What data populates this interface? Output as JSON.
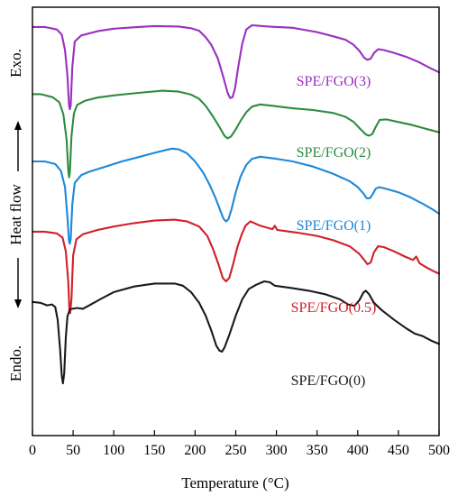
{
  "chart_data": {
    "type": "line",
    "xlabel": "Temperature (°C)",
    "ylabel": "Heat flow",
    "direction_labels": {
      "top": "Exo.",
      "bottom": "Endo."
    },
    "xlim": [
      0,
      500
    ],
    "x_ticks": [
      0,
      50,
      100,
      150,
      200,
      250,
      300,
      350,
      400,
      450,
      500
    ],
    "grid": false,
    "series": [
      {
        "name": "SPE/FGO(3)",
        "color": "#9B2FC0",
        "points": [
          [
            0,
            0.954
          ],
          [
            15,
            0.954
          ],
          [
            30,
            0.948
          ],
          [
            36,
            0.936
          ],
          [
            40,
            0.9
          ],
          [
            43,
            0.84
          ],
          [
            45,
            0.77
          ],
          [
            46,
            0.762
          ],
          [
            47,
            0.77
          ],
          [
            49,
            0.86
          ],
          [
            52,
            0.92
          ],
          [
            60,
            0.934
          ],
          [
            80,
            0.944
          ],
          [
            100,
            0.95
          ],
          [
            130,
            0.954
          ],
          [
            150,
            0.956
          ],
          [
            180,
            0.955
          ],
          [
            195,
            0.951
          ],
          [
            205,
            0.945
          ],
          [
            213,
            0.93
          ],
          [
            220,
            0.912
          ],
          [
            228,
            0.88
          ],
          [
            235,
            0.835
          ],
          [
            240,
            0.8
          ],
          [
            243,
            0.788
          ],
          [
            246,
            0.79
          ],
          [
            249,
            0.81
          ],
          [
            253,
            0.86
          ],
          [
            258,
            0.915
          ],
          [
            263,
            0.948
          ],
          [
            270,
            0.958
          ],
          [
            290,
            0.955
          ],
          [
            320,
            0.952
          ],
          [
            350,
            0.942
          ],
          [
            370,
            0.932
          ],
          [
            385,
            0.924
          ],
          [
            395,
            0.912
          ],
          [
            402,
            0.898
          ],
          [
            408,
            0.882
          ],
          [
            412,
            0.877
          ],
          [
            416,
            0.88
          ],
          [
            420,
            0.893
          ],
          [
            425,
            0.902
          ],
          [
            432,
            0.9
          ],
          [
            445,
            0.893
          ],
          [
            460,
            0.884
          ],
          [
            475,
            0.872
          ],
          [
            490,
            0.857
          ],
          [
            500,
            0.848
          ]
        ]
      },
      {
        "name": "SPE/FGO(2)",
        "color": "#2E8B40",
        "points": [
          [
            0,
            0.797
          ],
          [
            10,
            0.797
          ],
          [
            25,
            0.79
          ],
          [
            33,
            0.778
          ],
          [
            38,
            0.75
          ],
          [
            42,
            0.69
          ],
          [
            44,
            0.62
          ],
          [
            45,
            0.603
          ],
          [
            46,
            0.615
          ],
          [
            48,
            0.7
          ],
          [
            51,
            0.752
          ],
          [
            55,
            0.772
          ],
          [
            65,
            0.782
          ],
          [
            80,
            0.789
          ],
          [
            100,
            0.794
          ],
          [
            130,
            0.8
          ],
          [
            160,
            0.805
          ],
          [
            180,
            0.803
          ],
          [
            195,
            0.796
          ],
          [
            205,
            0.786
          ],
          [
            213,
            0.77
          ],
          [
            222,
            0.745
          ],
          [
            230,
            0.72
          ],
          [
            236,
            0.7
          ],
          [
            240,
            0.694
          ],
          [
            244,
            0.698
          ],
          [
            250,
            0.715
          ],
          [
            257,
            0.738
          ],
          [
            263,
            0.755
          ],
          [
            270,
            0.768
          ],
          [
            280,
            0.773
          ],
          [
            295,
            0.77
          ],
          [
            320,
            0.764
          ],
          [
            345,
            0.76
          ],
          [
            370,
            0.753
          ],
          [
            385,
            0.744
          ],
          [
            395,
            0.732
          ],
          [
            403,
            0.716
          ],
          [
            410,
            0.703
          ],
          [
            414,
            0.7
          ],
          [
            418,
            0.704
          ],
          [
            422,
            0.72
          ],
          [
            427,
            0.737
          ],
          [
            435,
            0.738
          ],
          [
            450,
            0.732
          ],
          [
            465,
            0.726
          ],
          [
            480,
            0.718
          ],
          [
            492,
            0.712
          ],
          [
            500,
            0.708
          ]
        ]
      },
      {
        "name": "SPE/FGO(1)",
        "color": "#1E88D8",
        "points": [
          [
            0,
            0.64
          ],
          [
            15,
            0.64
          ],
          [
            28,
            0.634
          ],
          [
            35,
            0.618
          ],
          [
            40,
            0.58
          ],
          [
            43,
            0.51
          ],
          [
            45,
            0.453
          ],
          [
            46,
            0.448
          ],
          [
            47,
            0.458
          ],
          [
            49,
            0.54
          ],
          [
            52,
            0.59
          ],
          [
            60,
            0.608
          ],
          [
            70,
            0.616
          ],
          [
            90,
            0.628
          ],
          [
            110,
            0.64
          ],
          [
            130,
            0.65
          ],
          [
            150,
            0.66
          ],
          [
            165,
            0.667
          ],
          [
            172,
            0.67
          ],
          [
            180,
            0.668
          ],
          [
            190,
            0.659
          ],
          [
            200,
            0.64
          ],
          [
            210,
            0.614
          ],
          [
            218,
            0.585
          ],
          [
            225,
            0.555
          ],
          [
            231,
            0.525
          ],
          [
            235,
            0.506
          ],
          [
            238,
            0.5
          ],
          [
            241,
            0.505
          ],
          [
            245,
            0.53
          ],
          [
            250,
            0.568
          ],
          [
            256,
            0.605
          ],
          [
            263,
            0.632
          ],
          [
            270,
            0.646
          ],
          [
            280,
            0.651
          ],
          [
            300,
            0.646
          ],
          [
            320,
            0.64
          ],
          [
            345,
            0.628
          ],
          [
            370,
            0.611
          ],
          [
            390,
            0.594
          ],
          [
            400,
            0.58
          ],
          [
            407,
            0.565
          ],
          [
            411,
            0.554
          ],
          [
            415,
            0.554
          ],
          [
            418,
            0.562
          ],
          [
            422,
            0.576
          ],
          [
            426,
            0.58
          ],
          [
            435,
            0.576
          ],
          [
            450,
            0.568
          ],
          [
            465,
            0.556
          ],
          [
            480,
            0.541
          ],
          [
            492,
            0.528
          ],
          [
            500,
            0.518
          ]
        ]
      },
      {
        "name": "SPE/FGO(0.5)",
        "color": "#D0202A",
        "points": [
          [
            0,
            0.476
          ],
          [
            15,
            0.476
          ],
          [
            30,
            0.472
          ],
          [
            37,
            0.462
          ],
          [
            41,
            0.43
          ],
          [
            44,
            0.36
          ],
          [
            45.5,
            0.292
          ],
          [
            46.5,
            0.286
          ],
          [
            48,
            0.32
          ],
          [
            50,
            0.42
          ],
          [
            54,
            0.458
          ],
          [
            62,
            0.47
          ],
          [
            80,
            0.48
          ],
          [
            100,
            0.488
          ],
          [
            125,
            0.496
          ],
          [
            150,
            0.502
          ],
          [
            175,
            0.504
          ],
          [
            190,
            0.5
          ],
          [
            205,
            0.488
          ],
          [
            215,
            0.466
          ],
          [
            222,
            0.436
          ],
          [
            229,
            0.398
          ],
          [
            234,
            0.368
          ],
          [
            238,
            0.36
          ],
          [
            242,
            0.368
          ],
          [
            247,
            0.402
          ],
          [
            252,
            0.44
          ],
          [
            257,
            0.468
          ],
          [
            262,
            0.49
          ],
          [
            268,
            0.5
          ],
          [
            280,
            0.49
          ],
          [
            295,
            0.482
          ],
          [
            298,
            0.49
          ],
          [
            301,
            0.48
          ],
          [
            325,
            0.474
          ],
          [
            350,
            0.466
          ],
          [
            370,
            0.456
          ],
          [
            390,
            0.442
          ],
          [
            402,
            0.424
          ],
          [
            408,
            0.41
          ],
          [
            412,
            0.4
          ],
          [
            416,
            0.404
          ],
          [
            420,
            0.428
          ],
          [
            425,
            0.442
          ],
          [
            432,
            0.44
          ],
          [
            445,
            0.43
          ],
          [
            458,
            0.418
          ],
          [
            468,
            0.41
          ],
          [
            472,
            0.418
          ],
          [
            476,
            0.402
          ],
          [
            485,
            0.392
          ],
          [
            495,
            0.382
          ],
          [
            500,
            0.378
          ]
        ]
      },
      {
        "name": "SPE/FGO(0)",
        "color": "#1A1A1A",
        "points": [
          [
            0,
            0.312
          ],
          [
            10,
            0.31
          ],
          [
            18,
            0.304
          ],
          [
            24,
            0.306
          ],
          [
            28,
            0.3
          ],
          [
            31,
            0.27
          ],
          [
            34,
            0.2
          ],
          [
            36,
            0.14
          ],
          [
            37.5,
            0.122
          ],
          [
            39,
            0.145
          ],
          [
            41,
            0.23
          ],
          [
            43,
            0.278
          ],
          [
            46,
            0.295
          ],
          [
            55,
            0.298
          ],
          [
            62,
            0.296
          ],
          [
            70,
            0.304
          ],
          [
            85,
            0.32
          ],
          [
            100,
            0.335
          ],
          [
            125,
            0.348
          ],
          [
            150,
            0.355
          ],
          [
            175,
            0.355
          ],
          [
            185,
            0.35
          ],
          [
            195,
            0.335
          ],
          [
            205,
            0.31
          ],
          [
            213,
            0.28
          ],
          [
            220,
            0.245
          ],
          [
            226,
            0.21
          ],
          [
            230,
            0.198
          ],
          [
            233,
            0.196
          ],
          [
            236,
            0.205
          ],
          [
            242,
            0.235
          ],
          [
            250,
            0.28
          ],
          [
            258,
            0.318
          ],
          [
            266,
            0.342
          ],
          [
            275,
            0.352
          ],
          [
            285,
            0.36
          ],
          [
            292,
            0.358
          ],
          [
            298,
            0.35
          ],
          [
            305,
            0.348
          ],
          [
            320,
            0.344
          ],
          [
            340,
            0.338
          ],
          [
            360,
            0.33
          ],
          [
            378,
            0.318
          ],
          [
            388,
            0.306
          ],
          [
            396,
            0.303
          ],
          [
            402,
            0.316
          ],
          [
            407,
            0.334
          ],
          [
            410,
            0.338
          ],
          [
            414,
            0.33
          ],
          [
            420,
            0.31
          ],
          [
            430,
            0.292
          ],
          [
            445,
            0.27
          ],
          [
            460,
            0.25
          ],
          [
            470,
            0.238
          ],
          [
            480,
            0.232
          ],
          [
            490,
            0.222
          ],
          [
            500,
            0.214
          ]
        ]
      }
    ]
  }
}
